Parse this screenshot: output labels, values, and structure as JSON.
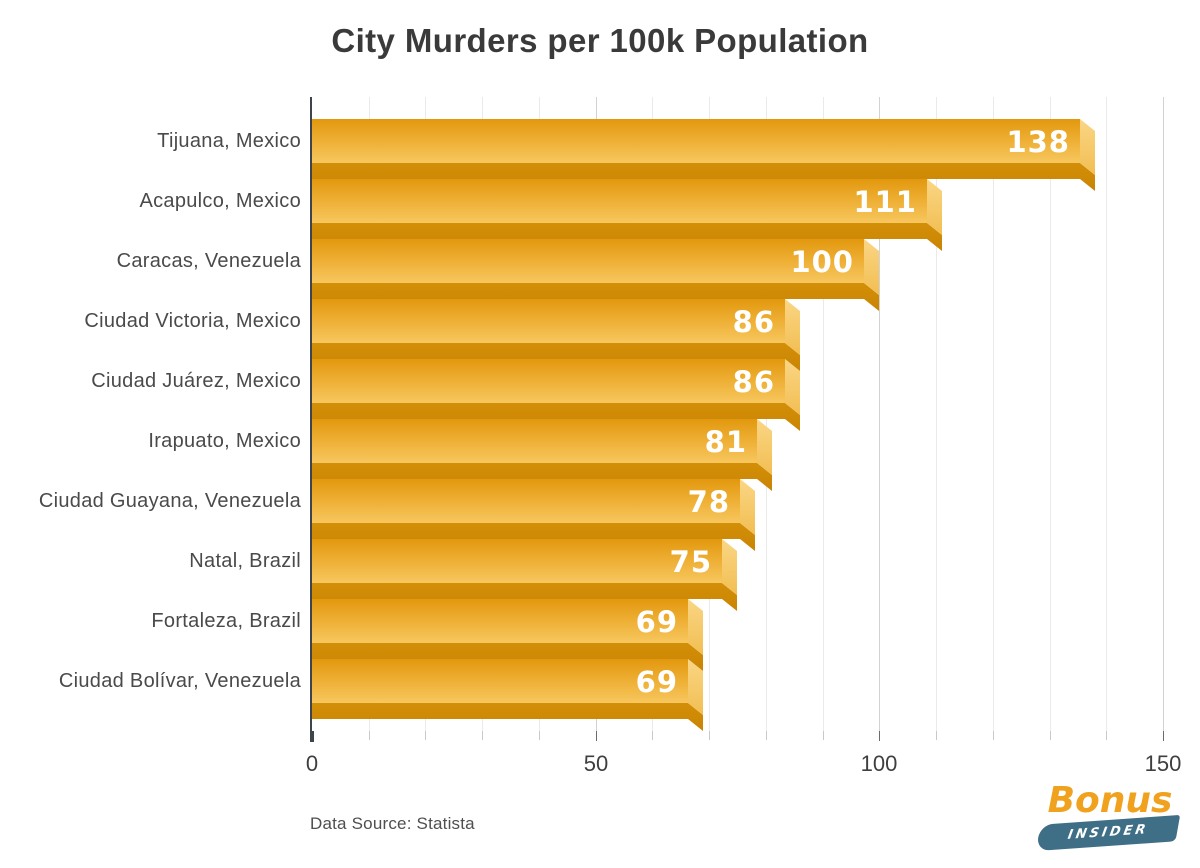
{
  "title": "City Murders per 100k Population",
  "source": "Data Source: Statista",
  "logo": {
    "brand": "Bonus",
    "sub": "INSIDER"
  },
  "chart_data": {
    "type": "bar",
    "orientation": "horizontal",
    "title": "City Murders per 100k Population",
    "categories": [
      "Tijuana, Mexico",
      "Acapulco, Mexico",
      "Caracas, Venezuela",
      "Ciudad Victoria, Mexico",
      "Ciudad Juárez, Mexico",
      "Irapuato, Mexico",
      "Ciudad Guayana, Venezuela",
      "Natal, Brazil",
      "Fortaleza, Brazil",
      "Ciudad Bolívar, Venezuela"
    ],
    "values": [
      138,
      111,
      100,
      86,
      86,
      81,
      78,
      75,
      69,
      69
    ],
    "xlim": [
      0,
      150
    ],
    "x_ticks": [
      0,
      50,
      100,
      150
    ],
    "minor_step": 10,
    "grid": "vertical minor gridlines every 10, majors at 50s",
    "legend": "none",
    "value_labels": "white bold numbers inside bar ends",
    "colors": {
      "face_top": "#e2980e",
      "face_mid": "#edad31",
      "face_bottom": "#f7c75f",
      "cap_top": "#fad685",
      "cap_bottom": "#f2be52",
      "band_top": "#d48f08",
      "band_bottom": "#c98403",
      "value_text": "#ffffff",
      "label_text": "#4a4a4a",
      "axis": "#3e444c",
      "gridline_minor": "#eaeaea",
      "gridline_major": "#d2d2d2",
      "title_text": "#3a3a3a",
      "logo_orange": "#f0a11d",
      "logo_teal": "#3f6f86"
    }
  }
}
